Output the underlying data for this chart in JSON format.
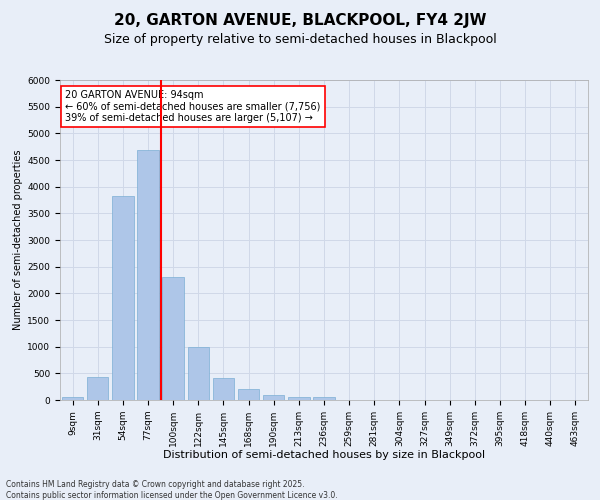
{
  "title1": "20, GARTON AVENUE, BLACKPOOL, FY4 2JW",
  "title2": "Size of property relative to semi-detached houses in Blackpool",
  "xlabel": "Distribution of semi-detached houses by size in Blackpool",
  "ylabel": "Number of semi-detached properties",
  "categories": [
    "9sqm",
    "31sqm",
    "54sqm",
    "77sqm",
    "100sqm",
    "122sqm",
    "145sqm",
    "168sqm",
    "190sqm",
    "213sqm",
    "236sqm",
    "259sqm",
    "281sqm",
    "304sqm",
    "327sqm",
    "349sqm",
    "372sqm",
    "395sqm",
    "418sqm",
    "440sqm",
    "463sqm"
  ],
  "bar_values": [
    50,
    430,
    3820,
    4680,
    2300,
    1000,
    410,
    210,
    90,
    65,
    60,
    0,
    0,
    0,
    0,
    0,
    0,
    0,
    0,
    0,
    0
  ],
  "bar_color": "#aec6e8",
  "bar_edge_color": "#7bafd4",
  "vline_index": 4,
  "vline_color": "red",
  "annotation_text": "20 GARTON AVENUE: 94sqm\n← 60% of semi-detached houses are smaller (7,756)\n39% of semi-detached houses are larger (5,107) →",
  "annotation_box_color": "white",
  "annotation_box_edge": "red",
  "ylim": [
    0,
    6000
  ],
  "yticks": [
    0,
    500,
    1000,
    1500,
    2000,
    2500,
    3000,
    3500,
    4000,
    4500,
    5000,
    5500,
    6000
  ],
  "grid_color": "#d0d8e8",
  "bg_color": "#e8eef8",
  "footer": "Contains HM Land Registry data © Crown copyright and database right 2025.\nContains public sector information licensed under the Open Government Licence v3.0.",
  "title1_fontsize": 11,
  "title2_fontsize": 9,
  "xlabel_fontsize": 8,
  "ylabel_fontsize": 7,
  "tick_fontsize": 6.5,
  "annotation_fontsize": 7,
  "footer_fontsize": 5.5
}
